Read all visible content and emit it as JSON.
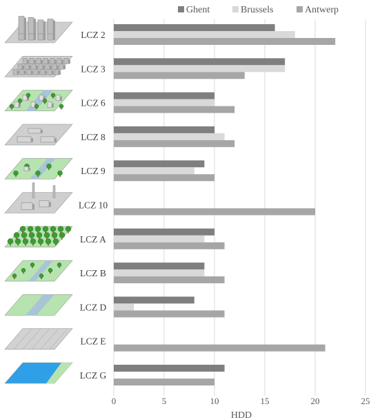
{
  "chart_data": {
    "type": "bar",
    "orientation": "horizontal",
    "categories": [
      "LCZ 2",
      "LCZ 3",
      "LCZ 6",
      "LCZ 8",
      "LCZ 9",
      "LCZ 10",
      "LCZ A",
      "LCZ B",
      "LCZ D",
      "LCZ E",
      "LCZ G"
    ],
    "series": [
      {
        "name": "Ghent",
        "color": "#7f7f7f",
        "values": [
          16,
          17,
          10,
          10,
          9,
          null,
          10,
          9,
          8,
          null,
          11
        ]
      },
      {
        "name": "Brussels",
        "color": "#d9d9d9",
        "values": [
          18,
          17,
          10,
          11,
          8,
          null,
          9,
          9,
          2,
          null,
          null
        ]
      },
      {
        "name": "Antwerp",
        "color": "#a6a6a6",
        "values": [
          22,
          13,
          12,
          12,
          10,
          20,
          11,
          11,
          11,
          21,
          10
        ]
      }
    ],
    "xlabel": "HDD",
    "ylabel": "",
    "xlim": [
      0,
      25
    ],
    "xticks": [
      0,
      5,
      10,
      15,
      20,
      25
    ],
    "grid": "vertical",
    "legend": "top"
  },
  "icons": [
    {
      "category": "LCZ 2",
      "icon": "compact-midrise-icon"
    },
    {
      "category": "LCZ 3",
      "icon": "compact-lowrise-icon"
    },
    {
      "category": "LCZ 6",
      "icon": "open-lowrise-icon"
    },
    {
      "category": "LCZ 8",
      "icon": "large-lowrise-icon"
    },
    {
      "category": "LCZ 9",
      "icon": "sparsely-built-icon"
    },
    {
      "category": "LCZ 10",
      "icon": "heavy-industry-icon"
    },
    {
      "category": "LCZ A",
      "icon": "dense-trees-icon"
    },
    {
      "category": "LCZ B",
      "icon": "scattered-trees-icon"
    },
    {
      "category": "LCZ D",
      "icon": "low-plants-icon"
    },
    {
      "category": "LCZ E",
      "icon": "bare-rock-paved-icon"
    },
    {
      "category": "LCZ G",
      "icon": "water-icon"
    }
  ],
  "colors": {
    "grid": "#d9d9d9",
    "ground_grey": "#cfcfcf",
    "ground_green": "#b7e3b0",
    "water": "#2f9fe8"
  }
}
